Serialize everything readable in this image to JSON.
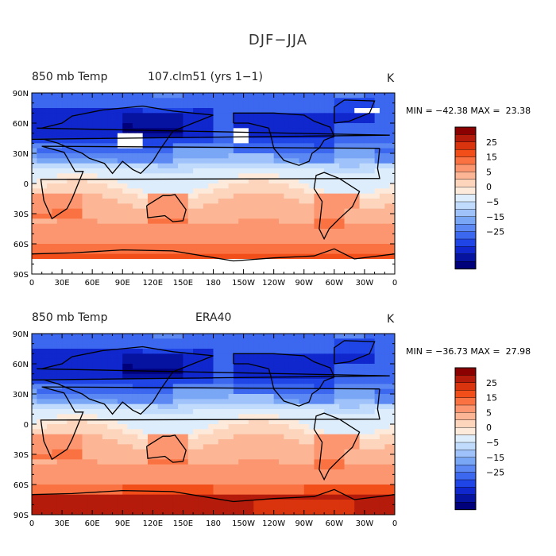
{
  "figure_title": "DJF−JJA",
  "colorbar_levels": [
    "25",
    "15",
    "5",
    "0",
    "−5",
    "−15",
    "−25"
  ],
  "colorbar_colors": [
    "#8b0000",
    "#b51b0a",
    "#d9340d",
    "#f24e1a",
    "#fb7242",
    "#fc9670",
    "#fcb695",
    "#fdd5bd",
    "#fdeadb",
    "#deedfb",
    "#c0dbfb",
    "#9fc2fb",
    "#7aa6f6",
    "#5b88f3",
    "#3c67ef",
    "#1f45e6",
    "#0f27cc",
    "#0612a0",
    "#00007a"
  ],
  "lat_labels": [
    "90N",
    "60N",
    "30N",
    "0",
    "30S",
    "60S",
    "90S"
  ],
  "lon_labels": [
    "0",
    "30E",
    "60E",
    "90E",
    "120E",
    "150E",
    "180",
    "150W",
    "120W",
    "90W",
    "60W",
    "30W",
    "0"
  ],
  "panels": [
    {
      "variable": "850 mb Temp",
      "case": "107.clm51 (yrs 1−1)",
      "units": "K",
      "stats": "MIN = −42.38 MAX =  23.38",
      "chart_data": {
        "type": "heatmap",
        "variable": "850 mb Temp",
        "min": -42.38,
        "max": 23.38,
        "units": "K",
        "zonal_pattern": [
          {
            "lat": 90,
            "value": -25
          },
          {
            "lat": 60,
            "value": -28
          },
          {
            "lat": 30,
            "value": -12
          },
          {
            "lat": 0,
            "value": 2
          },
          {
            "lat": -30,
            "value": 8
          },
          {
            "lat": -60,
            "value": 5
          },
          {
            "lat": -75,
            "value": 15
          }
        ]
      }
    },
    {
      "variable": "850 mb Temp",
      "case": "ERA40",
      "units": "K",
      "stats": "MIN = −36.73 MAX =  27.98",
      "chart_data": {
        "type": "heatmap",
        "variable": "850 mb Temp",
        "min": -36.73,
        "max": 27.98,
        "units": "K",
        "zonal_pattern": [
          {
            "lat": 90,
            "value": -22
          },
          {
            "lat": 60,
            "value": -28
          },
          {
            "lat": 30,
            "value": -12
          },
          {
            "lat": 0,
            "value": 1
          },
          {
            "lat": -30,
            "value": 8
          },
          {
            "lat": -60,
            "value": 6
          },
          {
            "lat": -80,
            "value": 25
          }
        ]
      }
    }
  ]
}
